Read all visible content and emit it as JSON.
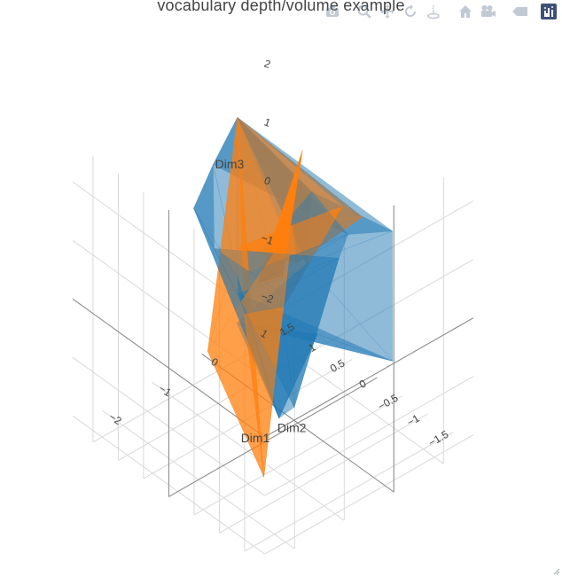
{
  "title": "vocabulary depth/volume example",
  "modebar": {
    "buttons": [
      {
        "name": "download-plot-button",
        "icon": "camera-icon",
        "label": "Download plot as a png"
      },
      {
        "name": "zoom-button",
        "icon": "zoom-icon",
        "label": "Zoom"
      },
      {
        "name": "pan-button",
        "icon": "pan-icon",
        "label": "Pan"
      },
      {
        "name": "orbit-rotation-button",
        "icon": "orbit-icon",
        "label": "Orbital rotation"
      },
      {
        "name": "turntable-rotation-button",
        "icon": "turntable-icon",
        "label": "Turntable rotation"
      },
      {
        "name": "reset-camera-default-button",
        "icon": "home-icon",
        "label": "Reset camera to default"
      },
      {
        "name": "reset-camera-last-save-button",
        "icon": "movie-camera-icon",
        "label": "Reset camera to last save"
      },
      {
        "name": "hover-toggle-button",
        "icon": "tag-icon",
        "label": "Toggle show closest data on hover"
      },
      {
        "name": "plotly-logo-button",
        "icon": "plotly-logo-icon",
        "label": "Produced with Plotly"
      }
    ]
  },
  "chart_data": {
    "type": "mesh3d",
    "title": "vocabulary depth/volume example",
    "axes": {
      "x": {
        "label": "Dim1",
        "range": [
          -2.6,
          1.6
        ],
        "ticks": [
          -2,
          -1,
          0,
          1
        ],
        "tick_labels": [
          "−2",
          "−1",
          "0",
          "1"
        ]
      },
      "y": {
        "label": "Dim2",
        "range": [
          -1.9,
          1.9
        ],
        "ticks": [
          -1.5,
          -1,
          -0.5,
          0,
          0.5,
          1,
          1.5
        ],
        "tick_labels": [
          "−1.5",
          "−1",
          "−0.5",
          "0",
          "0.5",
          "1",
          "1.5"
        ]
      },
      "z": {
        "label": "Dim3",
        "range": [
          -2.2,
          2.7
        ],
        "ticks": [
          -2,
          -1,
          0,
          1,
          2
        ],
        "tick_labels": [
          "−2",
          "−1",
          "0",
          "1",
          "2"
        ]
      }
    },
    "grid": true,
    "colors": {
      "blue": "#1f77b4",
      "orange": "#ff7f0e"
    },
    "series": [
      {
        "color": "#1f77b4",
        "opacity": 0.5,
        "vertices": [
          [
            -2.6,
            -0.9,
            2.6
          ],
          [
            -2.2,
            -0.1,
            2.6
          ],
          [
            -1.3,
            0.4,
            2.6
          ],
          [
            -0.2,
            1.0,
            2.5
          ],
          [
            1.4,
            1.2,
            -0.9
          ],
          [
            1.3,
            1.0,
            0.5
          ],
          [
            0.6,
            1.8,
            -1.9
          ],
          [
            1.5,
            -0.4,
            0.6
          ],
          [
            -1.8,
            -1.7,
            0.0
          ],
          [
            -1.6,
            -1.2,
            -0.6
          ],
          [
            -1.9,
            -1.5,
            1.9
          ],
          [
            -0.8,
            -1.6,
            2.0
          ],
          [
            0.4,
            -0.6,
            1.2
          ],
          [
            1.3,
            -0.6,
            -1.4
          ],
          [
            0.6,
            0.2,
            -1.1
          ],
          [
            -0.4,
            0.8,
            0.0
          ],
          [
            -1.2,
            0.0,
            0.6
          ]
        ],
        "triangles": [
          [
            0,
            1,
            8
          ],
          [
            1,
            8,
            9
          ],
          [
            0,
            10,
            8
          ],
          [
            1,
            2,
            15
          ],
          [
            1,
            15,
            9
          ],
          [
            2,
            3,
            15
          ],
          [
            3,
            5,
            15
          ],
          [
            3,
            4,
            5
          ],
          [
            3,
            7,
            4
          ],
          [
            4,
            6,
            13
          ],
          [
            4,
            13,
            7
          ],
          [
            6,
            14,
            13
          ],
          [
            6,
            9,
            14
          ],
          [
            9,
            16,
            14
          ],
          [
            15,
            16,
            9
          ],
          [
            10,
            11,
            8
          ],
          [
            11,
            12,
            16
          ],
          [
            12,
            5,
            15
          ],
          [
            12,
            7,
            5
          ],
          [
            13,
            14,
            16
          ],
          [
            11,
            16,
            8
          ],
          [
            12,
            16,
            15
          ],
          [
            0,
            1,
            2
          ],
          [
            2,
            3,
            12
          ],
          [
            10,
            0,
            11
          ]
        ]
      },
      {
        "color": "#ff7f0e",
        "opacity": 0.5,
        "vertices": [
          [
            -0.2,
            1.0,
            2.5
          ],
          [
            1.2,
            -0.1,
            0.8
          ],
          [
            1.3,
            1.3,
            -0.9
          ],
          [
            -1.5,
            -0.8,
            -1.9
          ],
          [
            -2.1,
            -1.0,
            1.3
          ],
          [
            0.4,
            1.6,
            -0.4
          ],
          [
            -0.9,
            0.9,
            -1.1
          ],
          [
            -1.0,
            -0.7,
            0.7
          ],
          [
            0.2,
            0.3,
            0.9
          ],
          [
            0.6,
            -0.3,
            1.4
          ]
        ],
        "triangles": [
          [
            0,
            1,
            2
          ],
          [
            0,
            2,
            5
          ],
          [
            0,
            5,
            6
          ],
          [
            0,
            6,
            3
          ],
          [
            0,
            3,
            4
          ],
          [
            0,
            4,
            7
          ],
          [
            0,
            7,
            9
          ],
          [
            0,
            9,
            1
          ],
          [
            1,
            9,
            8
          ],
          [
            1,
            8,
            2
          ],
          [
            2,
            8,
            5
          ],
          [
            5,
            8,
            6
          ],
          [
            6,
            8,
            3
          ],
          [
            3,
            8,
            7
          ],
          [
            7,
            8,
            9
          ],
          [
            4,
            3,
            7
          ]
        ]
      },
      {
        "color": "#ff7f0e",
        "opacity": 1,
        "vertices": [
          [
            0.3,
            0.2,
            2.2
          ],
          [
            -0.1,
            0.7,
            -0.2
          ],
          [
            0.2,
            0.5,
            -0.1
          ],
          [
            -0.4,
            0.9,
            -0.3
          ]
        ],
        "triangles": [
          [
            0,
            1,
            2
          ],
          [
            1,
            2,
            3
          ]
        ]
      }
    ]
  }
}
